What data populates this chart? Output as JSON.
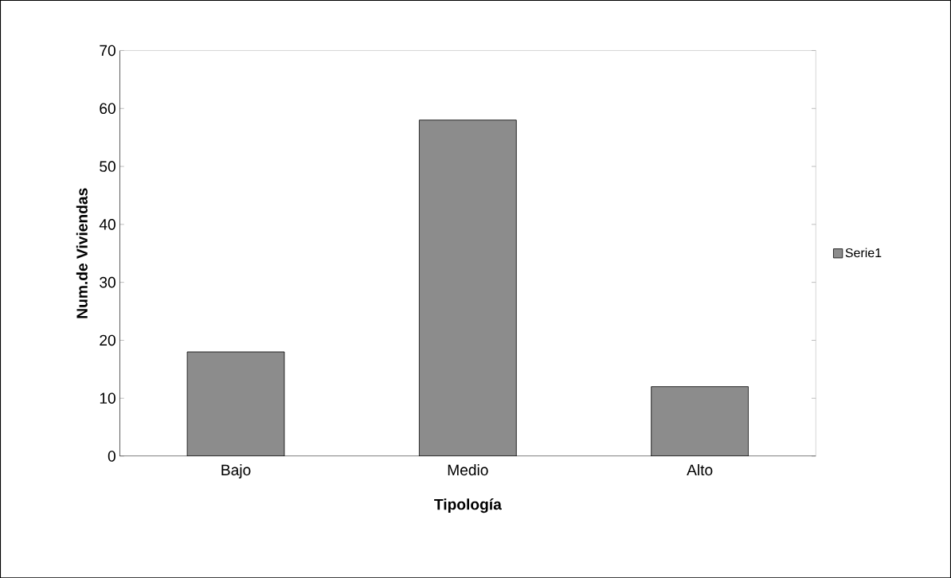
{
  "chart_data": {
    "type": "bar",
    "xlabel": "Tipología",
    "ylabel": "Num.de Viviendas",
    "categories": [
      "Bajo",
      "Medio",
      "Alto"
    ],
    "series": [
      {
        "name": "Serie1",
        "color": "#8c8c8c",
        "values": [
          18,
          58,
          12
        ]
      }
    ],
    "ylim": [
      0,
      70
    ],
    "yticks": [
      0,
      10,
      20,
      30,
      40,
      50,
      60,
      70
    ],
    "grid": false,
    "legend": "right"
  }
}
